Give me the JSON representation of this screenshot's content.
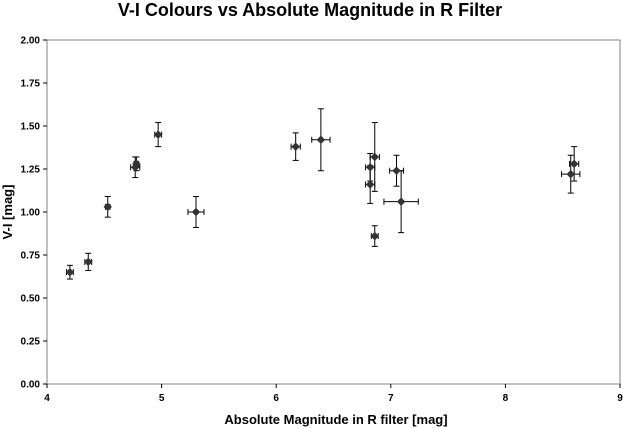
{
  "chart_data": {
    "type": "scatter",
    "title": "V-I Colours vs Absolute Magnitude in R Filter",
    "xlabel": "Absolute Magnitude in R filter  [mag]",
    "ylabel": "V-I  [mag]",
    "xlim": [
      4,
      9
    ],
    "ylim": [
      0.0,
      2.0
    ],
    "xticks": [
      "4",
      "5",
      "6",
      "7",
      "8",
      "9"
    ],
    "yticks": [
      "0.00",
      "0.25",
      "0.50",
      "0.75",
      "1.00",
      "1.25",
      "1.50",
      "1.75",
      "2.00"
    ],
    "grid": false,
    "legend": "none",
    "marker_color": "#333333",
    "points": [
      {
        "x": 4.2,
        "y": 0.65,
        "xerr": 0.03,
        "yerr": 0.04
      },
      {
        "x": 4.36,
        "y": 0.71,
        "xerr": 0.03,
        "yerr": 0.05
      },
      {
        "x": 4.53,
        "y": 1.03,
        "xerr": 0.02,
        "yerr": 0.06
      },
      {
        "x": 4.77,
        "y": 1.26,
        "xerr": 0.04,
        "yerr": 0.06
      },
      {
        "x": 4.78,
        "y": 1.28,
        "xerr": 0.02,
        "yerr": 0.04
      },
      {
        "x": 4.97,
        "y": 1.45,
        "xerr": 0.03,
        "yerr": 0.07
      },
      {
        "x": 5.3,
        "y": 1.0,
        "xerr": 0.07,
        "yerr": 0.09
      },
      {
        "x": 6.17,
        "y": 1.38,
        "xerr": 0.04,
        "yerr": 0.08
      },
      {
        "x": 6.39,
        "y": 1.42,
        "xerr": 0.08,
        "yerr": 0.18
      },
      {
        "x": 6.82,
        "y": 1.26,
        "xerr": 0.04,
        "yerr": 0.08
      },
      {
        "x": 6.82,
        "y": 1.16,
        "xerr": 0.04,
        "yerr": 0.11
      },
      {
        "x": 6.86,
        "y": 1.32,
        "xerr": 0.04,
        "yerr": 0.2
      },
      {
        "x": 6.86,
        "y": 0.86,
        "xerr": 0.03,
        "yerr": 0.06
      },
      {
        "x": 7.05,
        "y": 1.24,
        "xerr": 0.06,
        "yerr": 0.09
      },
      {
        "x": 7.09,
        "y": 1.06,
        "xerr": 0.15,
        "yerr": 0.18
      },
      {
        "x": 8.57,
        "y": 1.22,
        "xerr": 0.08,
        "yerr": 0.11
      },
      {
        "x": 8.6,
        "y": 1.28,
        "xerr": 0.04,
        "yerr": 0.1
      }
    ]
  }
}
